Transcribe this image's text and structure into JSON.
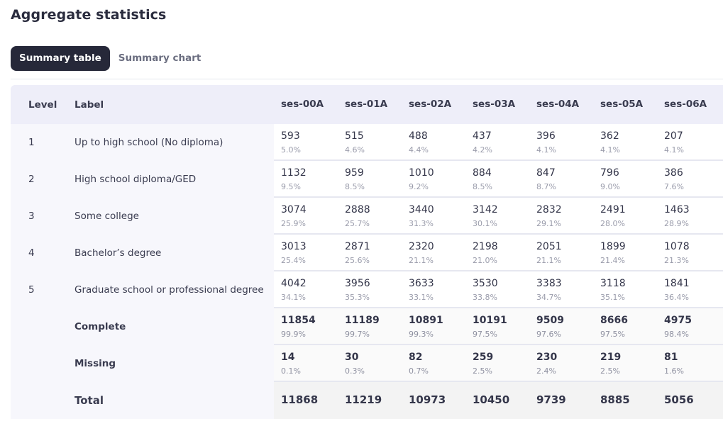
{
  "page": {
    "title": "Aggregate statistics"
  },
  "tabs": [
    {
      "label": "Summary table",
      "active": true
    },
    {
      "label": "Summary chart",
      "active": false
    }
  ],
  "table": {
    "headers": {
      "level": "Level",
      "label": "Label",
      "sessions": [
        "ses-00A",
        "ses-01A",
        "ses-02A",
        "ses-03A",
        "ses-04A",
        "ses-05A",
        "ses-06A"
      ]
    },
    "rows": [
      {
        "level": "1",
        "label": "Up to high school (No diploma)",
        "values": [
          [
            "593",
            "5.0%"
          ],
          [
            "515",
            "4.6%"
          ],
          [
            "488",
            "4.4%"
          ],
          [
            "437",
            "4.2%"
          ],
          [
            "396",
            "4.1%"
          ],
          [
            "362",
            "4.1%"
          ],
          [
            "207",
            "4.1%"
          ]
        ]
      },
      {
        "level": "2",
        "label": "High school diploma/GED",
        "values": [
          [
            "1132",
            "9.5%"
          ],
          [
            "959",
            "8.5%"
          ],
          [
            "1010",
            "9.2%"
          ],
          [
            "884",
            "8.5%"
          ],
          [
            "847",
            "8.7%"
          ],
          [
            "796",
            "9.0%"
          ],
          [
            "386",
            "7.6%"
          ]
        ]
      },
      {
        "level": "3",
        "label": "Some college",
        "values": [
          [
            "3074",
            "25.9%"
          ],
          [
            "2888",
            "25.7%"
          ],
          [
            "3440",
            "31.3%"
          ],
          [
            "3142",
            "30.1%"
          ],
          [
            "2832",
            "29.1%"
          ],
          [
            "2491",
            "28.0%"
          ],
          [
            "1463",
            "28.9%"
          ]
        ]
      },
      {
        "level": "4",
        "label": "Bachelor’s degree",
        "values": [
          [
            "3013",
            "25.4%"
          ],
          [
            "2871",
            "25.6%"
          ],
          [
            "2320",
            "21.1%"
          ],
          [
            "2198",
            "21.0%"
          ],
          [
            "2051",
            "21.1%"
          ],
          [
            "1899",
            "21.4%"
          ],
          [
            "1078",
            "21.3%"
          ]
        ]
      },
      {
        "level": "5",
        "label": "Graduate school or professional degree",
        "values": [
          [
            "4042",
            "34.1%"
          ],
          [
            "3956",
            "35.3%"
          ],
          [
            "3633",
            "33.1%"
          ],
          [
            "3530",
            "33.8%"
          ],
          [
            "3383",
            "34.7%"
          ],
          [
            "3118",
            "35.1%"
          ],
          [
            "1841",
            "36.4%"
          ]
        ]
      }
    ],
    "complete": {
      "label": "Complete",
      "values": [
        [
          "11854",
          "99.9%"
        ],
        [
          "11189",
          "99.7%"
        ],
        [
          "10891",
          "99.3%"
        ],
        [
          "10191",
          "97.5%"
        ],
        [
          "9509",
          "97.6%"
        ],
        [
          "8666",
          "97.5%"
        ],
        [
          "4975",
          "98.4%"
        ]
      ]
    },
    "missing": {
      "label": "Missing",
      "values": [
        [
          "14",
          "0.1%"
        ],
        [
          "30",
          "0.3%"
        ],
        [
          "82",
          "0.7%"
        ],
        [
          "259",
          "2.5%"
        ],
        [
          "230",
          "2.4%"
        ],
        [
          "219",
          "2.5%"
        ],
        [
          "81",
          "1.6%"
        ]
      ]
    },
    "total": {
      "label": "Total",
      "values": [
        "11868",
        "11219",
        "10973",
        "10450",
        "9739",
        "8885",
        "5056"
      ]
    }
  }
}
